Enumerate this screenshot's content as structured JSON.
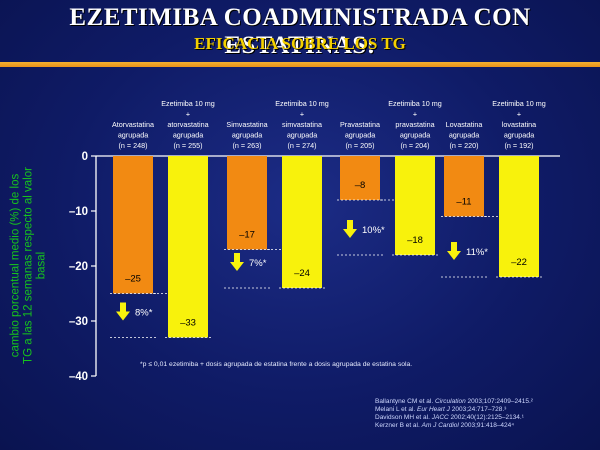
{
  "slide": {
    "title": "EZETIMIBA COADMINISTRADA CON ESTATINAS:",
    "subtitle": "EFICACIA SOBRE LOS TG"
  },
  "colors": {
    "statin": "#f28a12",
    "ezetimibe": "#f8f20c",
    "title": "#ffffff",
    "subtitle": "#f4d000",
    "axis_label": "#16c51c",
    "rule": "#ee9f22"
  },
  "chart_data": {
    "type": "bar",
    "ylabel": "cambio porcentual medio (%) de los TG a las 12 semanas respecto al valor basal",
    "ylim": [
      -40,
      0
    ],
    "yticks": [
      0,
      -10,
      -20,
      -30,
      -40
    ],
    "grid": false,
    "groups": [
      {
        "bars": [
          {
            "series": "statin",
            "label": [
              "Atorvastatina",
              "agrupada",
              "(n = 248)"
            ],
            "value": -25,
            "value_label": "–25"
          },
          {
            "series": "ezetimibe",
            "label": [
              "Ezetimiba 10 mg",
              "+",
              "atorvastatina",
              "agrupada",
              "(n = 255)"
            ],
            "value": -33,
            "value_label": "–33"
          }
        ],
        "reduction_label": "8%*"
      },
      {
        "bars": [
          {
            "series": "statin",
            "label": [
              "Simvastatina",
              "agrupada",
              "(n = 263)"
            ],
            "value": -17,
            "value_label": "–17"
          },
          {
            "series": "ezetimibe",
            "label": [
              "Ezetimiba 10 mg",
              "+",
              "simvastatina",
              "agrupada",
              "(n = 274)"
            ],
            "value": -24,
            "value_label": "–24"
          }
        ],
        "reduction_label": "7%*"
      },
      {
        "bars": [
          {
            "series": "statin",
            "label": [
              "Pravastatina",
              "agrupada",
              "(n = 205)"
            ],
            "value": -8,
            "value_label": "–8"
          },
          {
            "series": "ezetimibe",
            "label": [
              "Ezetimiba 10 mg",
              "+",
              "pravastatina",
              "agrupada",
              "(n = 204)"
            ],
            "value": -18,
            "value_label": "–18"
          }
        ],
        "reduction_label": "10%*"
      },
      {
        "bars": [
          {
            "series": "statin",
            "label": [
              "Lovastatina",
              "agrupada",
              "(n = 220)"
            ],
            "value": -11,
            "value_label": "–11"
          },
          {
            "series": "ezetimibe",
            "label": [
              "Ezetimiba 10 mg",
              "+",
              "lovastatina",
              "agrupada",
              "(n = 192)"
            ],
            "value": -22,
            "value_label": "–22"
          }
        ],
        "reduction_label": "11%*"
      }
    ],
    "footnote": "*p ≤ 0,01 ezetimiba + dosis agrupada de estatina frente a dosis agrupada de estatina sola."
  },
  "references": [
    {
      "authors": "Ballantyne CM et al.",
      "journal": "Circulation",
      "details": "2003;107:2409–2415.²"
    },
    {
      "authors": "Melani L et al.",
      "journal": "Eur Heart J",
      "details": "2003;24:717–728.³"
    },
    {
      "authors": "Davidson MH et al.",
      "journal": "JACC",
      "details": "2002;40(12):2125–2134.¹"
    },
    {
      "authors": "Kerzner B et al.",
      "journal": "Am J Cardiol",
      "details": "2003;91:418–424⁴"
    }
  ]
}
